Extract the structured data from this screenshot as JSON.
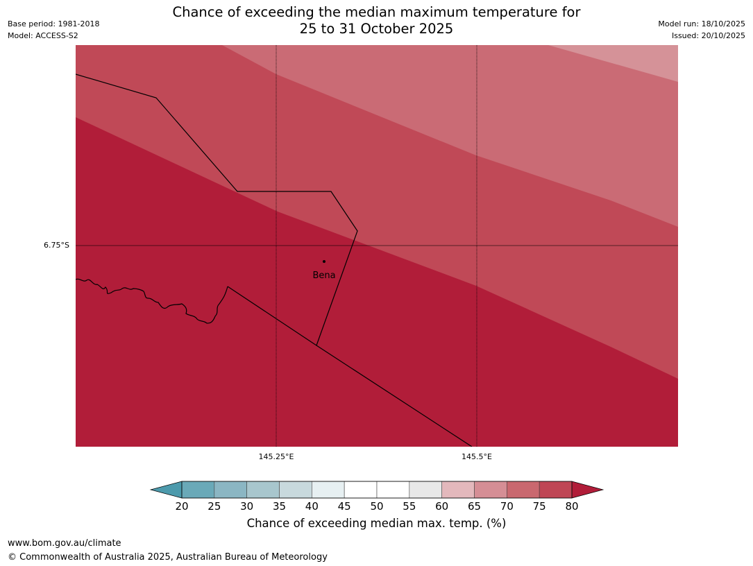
{
  "header": {
    "title_line1": "Chance of exceeding the median maximum temperature for",
    "title_line2": "25 to 31 October 2025",
    "base_period": "Base period: 1981-2018",
    "model": "Model: ACCESS-S2",
    "model_run": "Model run: 18/10/2025",
    "issued": "Issued: 20/10/2025"
  },
  "map": {
    "lat_labels": [
      "6.75°S"
    ],
    "lon_labels": [
      "145.25°E",
      "145.5°E"
    ],
    "place": {
      "name": "Bena",
      "marker": "town-dot"
    },
    "zone_colors": [
      "#b11d39",
      "#c04957",
      "#ca6b75",
      "#d59298"
    ],
    "zone_categories": [
      "80+",
      "75-80",
      "70-75",
      "65-70"
    ]
  },
  "colorbar": {
    "title": "Chance of exceeding median max. temp. (%)",
    "ticks": [
      "20",
      "25",
      "30",
      "35",
      "40",
      "45",
      "50",
      "55",
      "60",
      "65",
      "70",
      "75",
      "80"
    ],
    "colors": [
      "#6aa9b8",
      "#8bb6c3",
      "#a8c6cd",
      "#c8d9dd",
      "#e7f0f2",
      "#ffffff",
      "#ffffff",
      "#e8e8e8",
      "#e3b8bc",
      "#d58e95",
      "#c9686f",
      "#bf4655"
    ],
    "under_color": "#4c9aac",
    "over_color": "#b11d39"
  },
  "footer": {
    "url": "www.bom.gov.au/climate",
    "copyright": "© Commonwealth of Australia 2025, Australian Bureau of Meteorology"
  }
}
